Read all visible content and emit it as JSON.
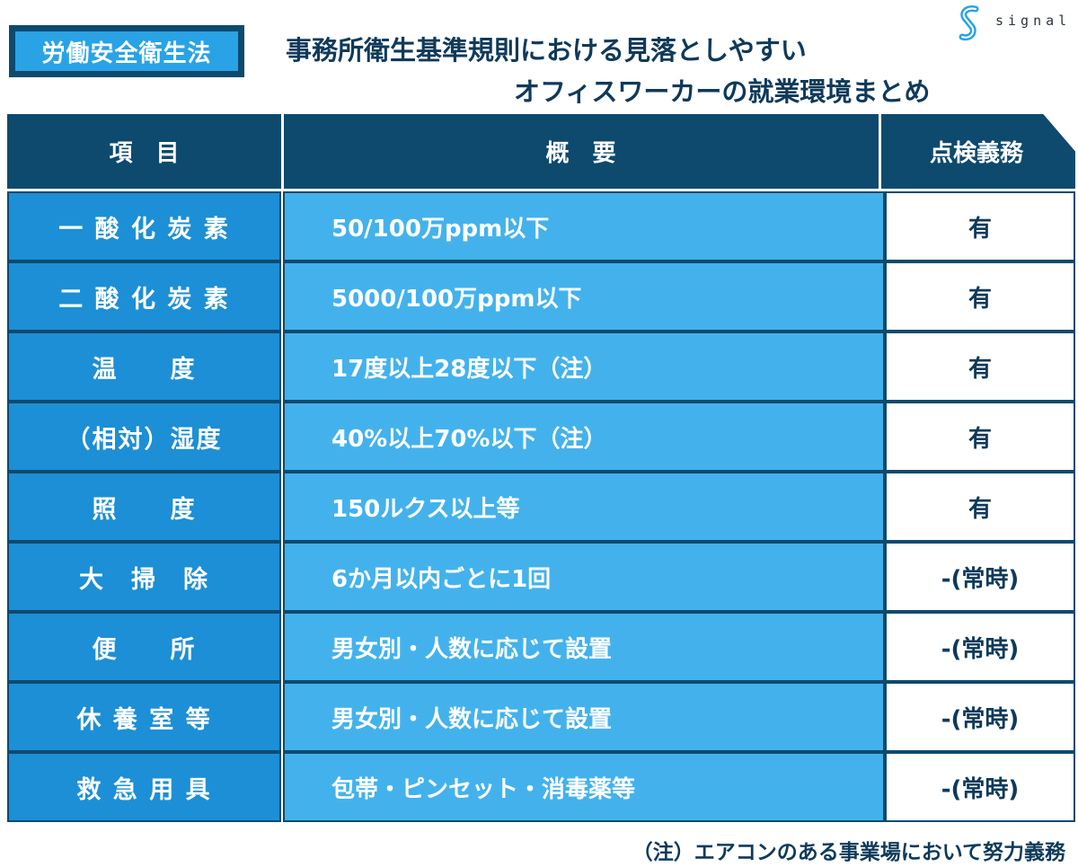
{
  "badge": {
    "label": "労働安全衛生法"
  },
  "title": {
    "line1": "事務所衛生基準規則における見落としやすい",
    "line2": "オフィスワーカーの就業環境まとめ"
  },
  "logo": {
    "icon": "signal-s-logo-icon",
    "text": "signal"
  },
  "table": {
    "headers": [
      "項　目",
      "概　要",
      "点検義務"
    ],
    "rows": [
      {
        "item": "一 酸 化 炭 素",
        "summary": "50/100万ppm以下",
        "check": "有"
      },
      {
        "item": "二 酸 化 炭 素",
        "summary": "5000/100万ppm以下",
        "check": "有"
      },
      {
        "item": "温　　度",
        "summary": "17度以上28度以下（注）",
        "check": "有"
      },
      {
        "item": "（相対）湿度",
        "summary": "40%以上70%以下（注）",
        "check": "有"
      },
      {
        "item": "照　　度",
        "summary": "150ルクス以上等",
        "check": "有"
      },
      {
        "item": "大　掃　除",
        "summary": "6か月以内ごとに1回",
        "check": "-(常時)"
      },
      {
        "item": "便　　所",
        "summary": "男女別・人数に応じて設置",
        "check": "-(常時)"
      },
      {
        "item": "休 養 室 等",
        "summary": "男女別・人数に応じて設置",
        "check": "-(常時)"
      },
      {
        "item": "救 急 用 具",
        "summary": "包帯・ピンセット・消毒薬等",
        "check": "-(常時)"
      }
    ]
  },
  "footnote": "（注）エアコンのある事業場において努力義務",
  "colors": {
    "navy": "#0e4a6e",
    "item_blue": "#1c8fd6",
    "summary_blue": "#43b2ec",
    "badge_blue": "#29a3e6",
    "white": "#ffffff"
  }
}
